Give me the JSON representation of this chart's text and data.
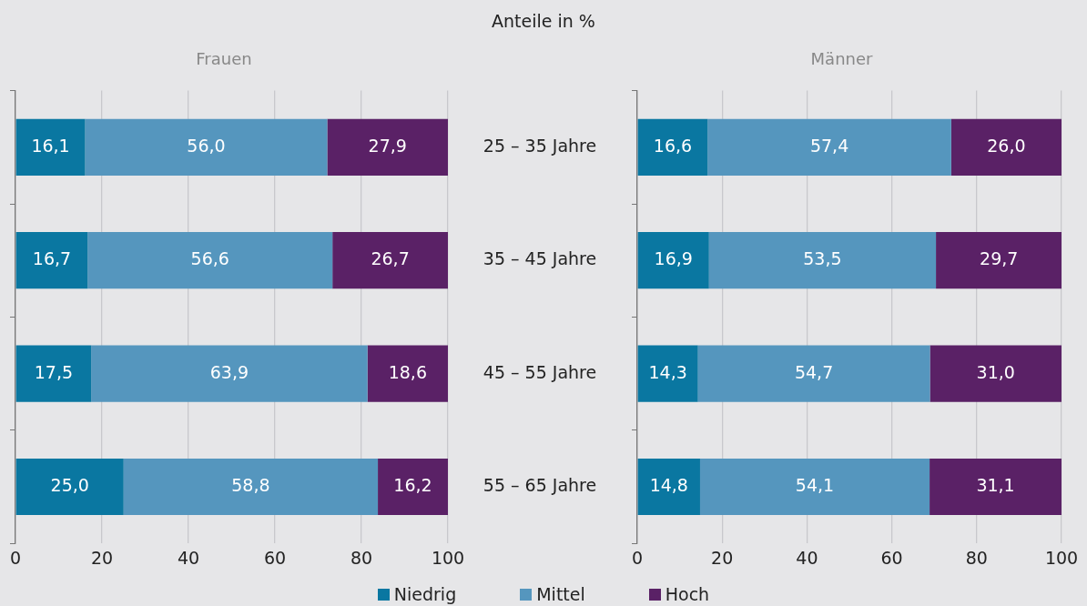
{
  "chart_data": [
    {
      "type": "bar",
      "title": "Anteile in %",
      "subtitle": "Frauen",
      "orientation": "horizontal",
      "stacked": true,
      "grid": "x",
      "legend": "bottom",
      "categories": [
        "25 – 35 Jahre",
        "35 – 45 Jahre",
        "45 – 55 Jahre",
        "55 – 65 Jahre"
      ],
      "xlim": [
        0,
        100
      ],
      "xticks": [
        0,
        20,
        40,
        60,
        80,
        100
      ],
      "series": [
        {
          "name": "Niedrig",
          "color": "#0a77a1",
          "values": [
            16.1,
            16.7,
            17.5,
            25.0
          ],
          "value_labels": [
            "16,1",
            "16,7",
            "17,5",
            "25,0"
          ]
        },
        {
          "name": "Mittel",
          "color": "#5596be",
          "values": [
            56.0,
            56.6,
            63.9,
            58.8
          ],
          "value_labels": [
            "56,0",
            "56,6",
            "63,9",
            "58,8"
          ]
        },
        {
          "name": "Hoch",
          "color": "#5a2166",
          "values": [
            27.9,
            26.7,
            18.6,
            16.2
          ],
          "value_labels": [
            "27,9",
            "26,7",
            "18,6",
            "16,2"
          ]
        }
      ]
    },
    {
      "type": "bar",
      "subtitle": "Männer",
      "orientation": "horizontal",
      "stacked": true,
      "grid": "x",
      "legend": "bottom",
      "tick_labels": "x",
      "categories": [
        "25 – 35 Jahre",
        "35 – 45 Jahre",
        "45 – 55 Jahre",
        "55 – 65 Jahre"
      ],
      "xlim": [
        0,
        100
      ],
      "xticks": [
        0,
        20,
        40,
        60,
        80,
        100
      ],
      "series": [
        {
          "name": "Niedrig",
          "color": "#0a77a1",
          "values": [
            16.6,
            16.9,
            14.3,
            14.8
          ],
          "value_labels": [
            "16,6",
            "16,9",
            "14,3",
            "14,8"
          ]
        },
        {
          "name": "Mittel",
          "color": "#5596be",
          "values": [
            57.4,
            53.5,
            54.7,
            54.1
          ],
          "value_labels": [
            "57,4",
            "53,5",
            "54,7",
            "54,1"
          ]
        },
        {
          "name": "Hoch",
          "color": "#5a2166",
          "values": [
            26.0,
            29.7,
            31.0,
            31.1
          ],
          "value_labels": [
            "26,0",
            "29,7",
            "31,0",
            "31,1"
          ]
        }
      ]
    }
  ]
}
